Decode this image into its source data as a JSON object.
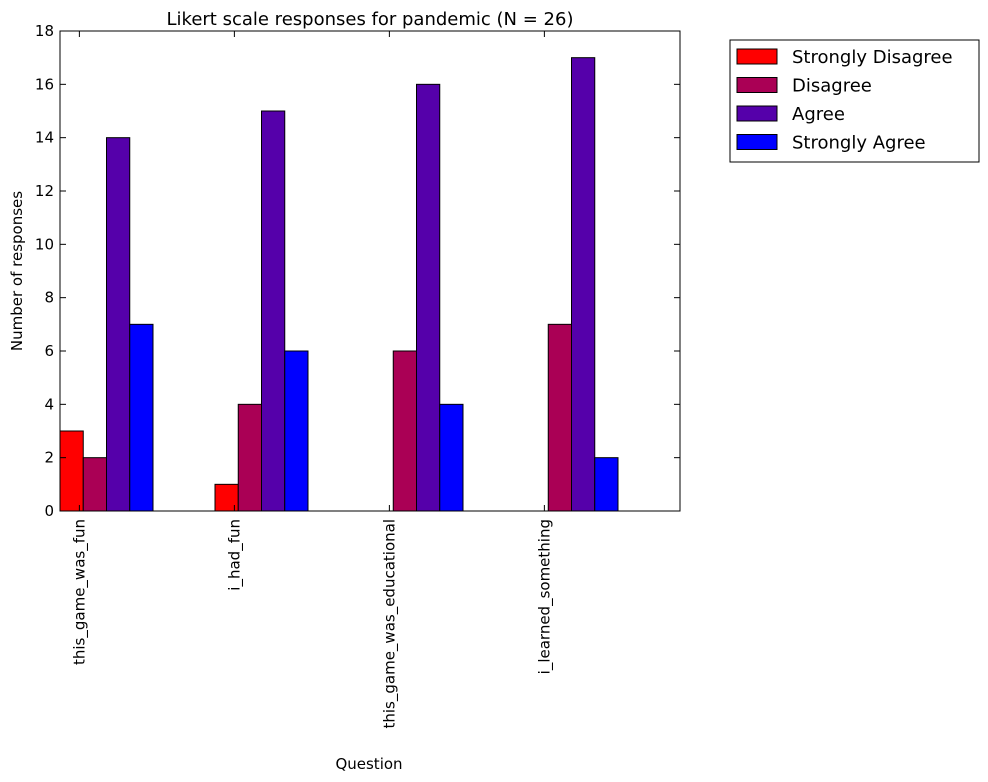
{
  "chart_data": {
    "type": "bar",
    "title": "Likert scale responses for pandemic (N = 26)",
    "xlabel": "Question",
    "ylabel": "Number of responses",
    "ylim": [
      0,
      18
    ],
    "yticks": [
      0,
      2,
      4,
      6,
      8,
      10,
      12,
      14,
      16,
      18
    ],
    "categories": [
      "this_game_was_fun",
      "i_had_fun",
      "this_game_was_educational",
      "i_learned_something"
    ],
    "series": [
      {
        "name": "Strongly Disagree",
        "color": "#ff0000",
        "values": [
          3,
          1,
          0,
          0
        ]
      },
      {
        "name": "Disagree",
        "color": "#aa0055",
        "values": [
          2,
          4,
          6,
          7
        ]
      },
      {
        "name": "Agree",
        "color": "#5500aa",
        "values": [
          14,
          15,
          16,
          17
        ]
      },
      {
        "name": "Strongly Agree",
        "color": "#0000ff",
        "values": [
          7,
          6,
          4,
          2
        ]
      }
    ],
    "legend_position": "outside-top-right",
    "grid": false
  }
}
